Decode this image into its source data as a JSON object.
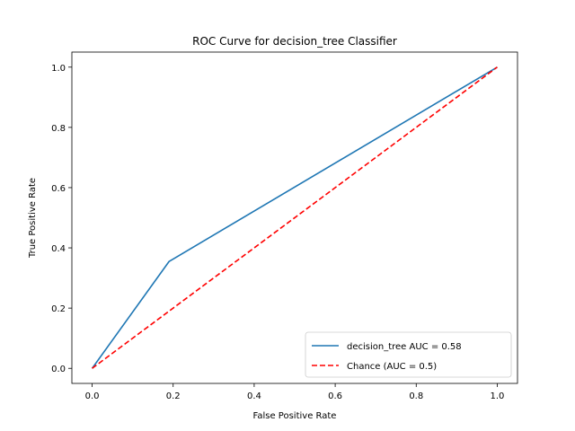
{
  "chart_data": {
    "type": "line",
    "title": "ROC Curve for decision_tree Classifier",
    "xlabel": "False Positive Rate",
    "ylabel": "True Positive Rate",
    "xlim": [
      -0.05,
      1.05
    ],
    "ylim": [
      -0.05,
      1.05
    ],
    "xticks": [
      0.0,
      0.2,
      0.4,
      0.6,
      0.8,
      1.0
    ],
    "yticks": [
      0.0,
      0.2,
      0.4,
      0.6,
      0.8,
      1.0
    ],
    "xtick_labels": [
      "0.0",
      "0.2",
      "0.4",
      "0.6",
      "0.8",
      "1.0"
    ],
    "ytick_labels": [
      "0.0",
      "0.2",
      "0.4",
      "0.6",
      "0.8",
      "1.0"
    ],
    "grid": false,
    "legend_position": "lower-right",
    "series": [
      {
        "name": "decision_tree AUC = 0.58",
        "style": "solid",
        "color": "#1f77b4",
        "x": [
          0.0,
          0.19,
          1.0
        ],
        "y": [
          0.0,
          0.355,
          1.0
        ]
      },
      {
        "name": "Chance (AUC = 0.5)",
        "style": "dashed",
        "color": "#ff0000",
        "x": [
          0.0,
          1.0
        ],
        "y": [
          0.0,
          1.0
        ]
      }
    ]
  }
}
